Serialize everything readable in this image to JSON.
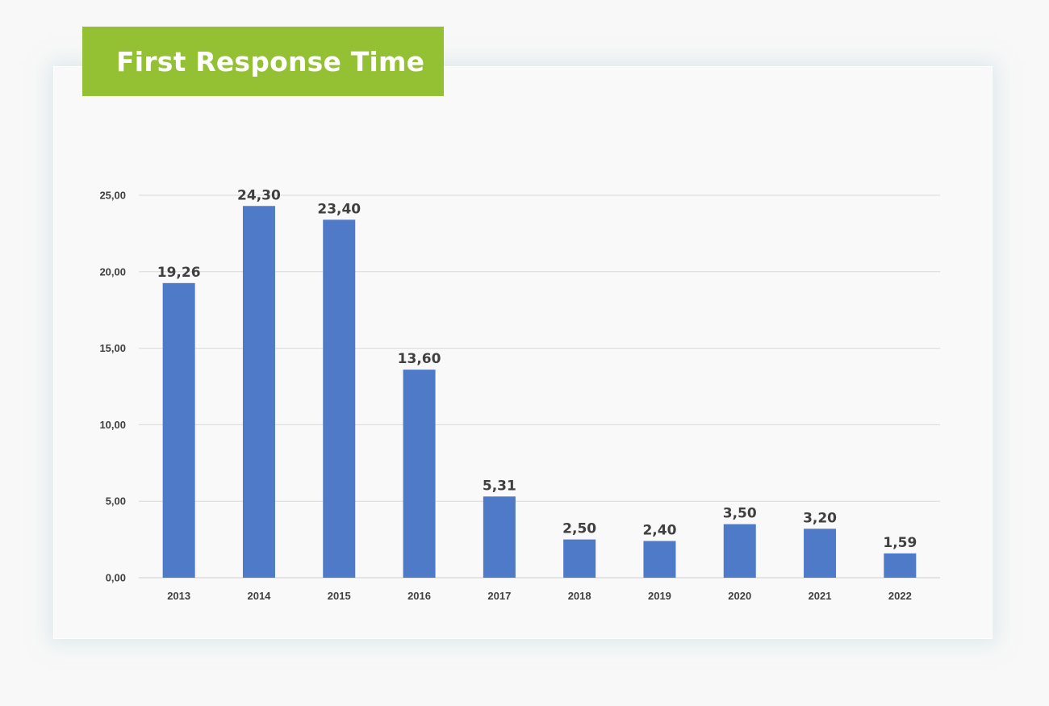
{
  "chart_data": {
    "type": "bar",
    "title": "First Response Time",
    "categories": [
      "2013",
      "2014",
      "2015",
      "2016",
      "2017",
      "2018",
      "2019",
      "2020",
      "2021",
      "2022"
    ],
    "values": [
      19.26,
      24.3,
      23.4,
      13.6,
      5.31,
      2.5,
      2.4,
      3.5,
      3.2,
      1.59
    ],
    "data_labels": [
      "19,26",
      "24,30",
      "23,40",
      "13,60",
      "5,31",
      "2,50",
      "2,40",
      "3,50",
      "3,20",
      "1,59"
    ],
    "yticks": [
      0,
      5,
      10,
      15,
      20,
      25
    ],
    "ytick_labels": [
      "0,00",
      "5,00",
      "10,00",
      "15,00",
      "20,00",
      "25,00"
    ],
    "ylim": [
      0,
      25
    ],
    "xlabel": "",
    "ylabel": "",
    "grid": true,
    "legend": "none",
    "bar_color": "#4f7ac7",
    "title_bg_color": "#94c134"
  }
}
